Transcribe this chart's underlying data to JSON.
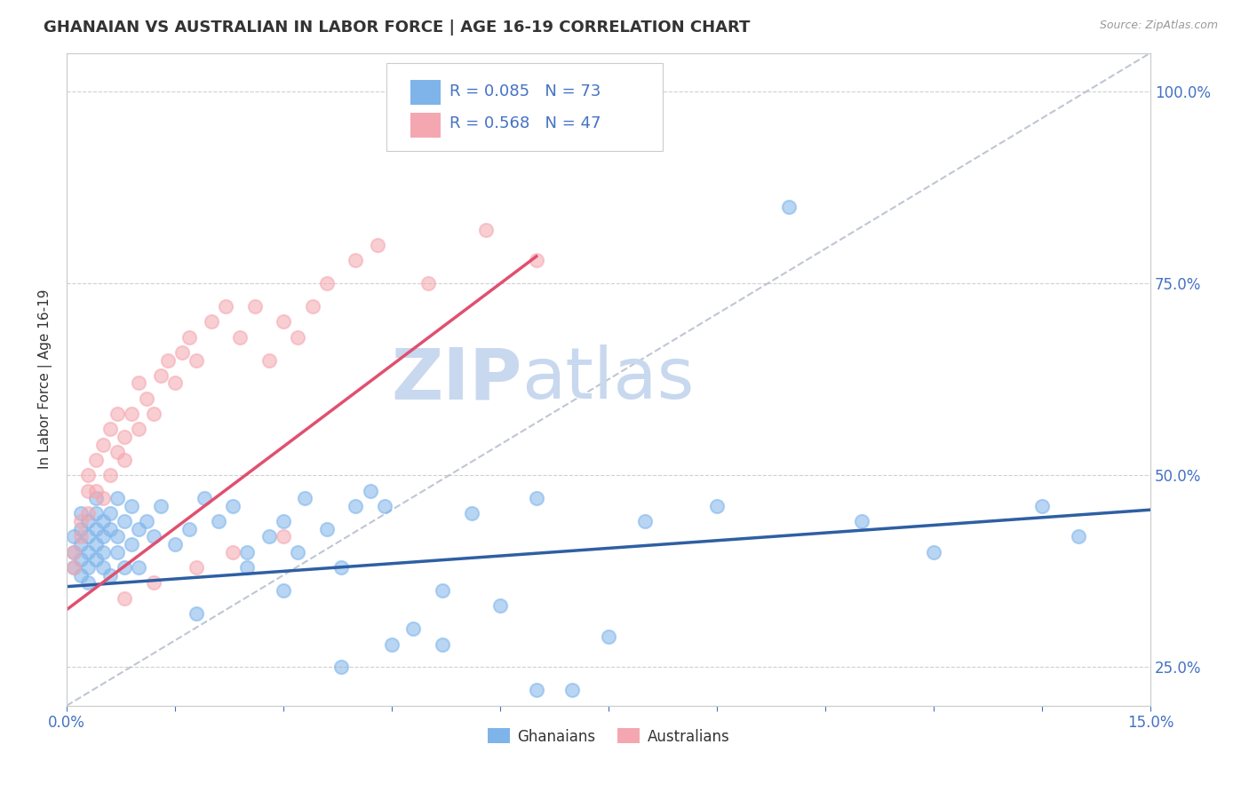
{
  "title": "GHANAIAN VS AUSTRALIAN IN LABOR FORCE | AGE 16-19 CORRELATION CHART",
  "source_text": "Source: ZipAtlas.com",
  "ylabel": "In Labor Force | Age 16-19",
  "xlim": [
    0.0,
    0.15
  ],
  "ylim": [
    0.2,
    1.05
  ],
  "yticks": [
    0.25,
    0.5,
    0.75,
    1.0
  ],
  "yticklabels_right": [
    "25.0%",
    "50.0%",
    "75.0%",
    "100.0%"
  ],
  "color_ghanaian": "#7eb4ea",
  "color_australian": "#f4a7b0",
  "color_line_ghanaian": "#2e5fa3",
  "color_line_australian": "#e05070",
  "color_ref_line": "#b0b8c8",
  "background_color": "#ffffff",
  "watermark_zip": "ZIP",
  "watermark_atlas": "atlas",
  "watermark_color": "#c8d8ee",
  "title_fontsize": 13,
  "axis_label_fontsize": 11,
  "tick_fontsize": 12,
  "tick_color": "#4472c4",
  "gh_x": [
    0.001,
    0.001,
    0.001,
    0.002,
    0.002,
    0.002,
    0.002,
    0.002,
    0.003,
    0.003,
    0.003,
    0.003,
    0.003,
    0.004,
    0.004,
    0.004,
    0.004,
    0.004,
    0.005,
    0.005,
    0.005,
    0.005,
    0.006,
    0.006,
    0.006,
    0.007,
    0.007,
    0.007,
    0.008,
    0.008,
    0.009,
    0.009,
    0.01,
    0.01,
    0.011,
    0.012,
    0.013,
    0.015,
    0.017,
    0.019,
    0.021,
    0.023,
    0.025,
    0.028,
    0.03,
    0.033,
    0.036,
    0.038,
    0.04,
    0.042,
    0.045,
    0.048,
    0.052,
    0.056,
    0.06,
    0.065,
    0.07,
    0.075,
    0.08,
    0.09,
    0.1,
    0.11,
    0.12,
    0.135,
    0.14,
    0.038,
    0.052,
    0.065,
    0.03,
    0.025,
    0.018,
    0.044,
    0.032
  ],
  "gh_y": [
    0.4,
    0.38,
    0.42,
    0.41,
    0.37,
    0.43,
    0.39,
    0.45,
    0.4,
    0.38,
    0.42,
    0.44,
    0.36,
    0.41,
    0.43,
    0.39,
    0.45,
    0.47,
    0.4,
    0.38,
    0.42,
    0.44,
    0.43,
    0.37,
    0.45,
    0.4,
    0.42,
    0.47,
    0.38,
    0.44,
    0.41,
    0.46,
    0.43,
    0.38,
    0.44,
    0.42,
    0.46,
    0.41,
    0.43,
    0.47,
    0.44,
    0.46,
    0.4,
    0.42,
    0.44,
    0.47,
    0.43,
    0.38,
    0.46,
    0.48,
    0.28,
    0.3,
    0.35,
    0.45,
    0.33,
    0.47,
    0.22,
    0.29,
    0.44,
    0.46,
    0.85,
    0.44,
    0.4,
    0.46,
    0.42,
    0.25,
    0.28,
    0.22,
    0.35,
    0.38,
    0.32,
    0.46,
    0.4
  ],
  "au_x": [
    0.001,
    0.001,
    0.002,
    0.002,
    0.003,
    0.003,
    0.003,
    0.004,
    0.004,
    0.005,
    0.005,
    0.006,
    0.006,
    0.007,
    0.007,
    0.008,
    0.008,
    0.009,
    0.01,
    0.01,
    0.011,
    0.012,
    0.013,
    0.014,
    0.015,
    0.016,
    0.017,
    0.018,
    0.02,
    0.022,
    0.024,
    0.026,
    0.028,
    0.03,
    0.032,
    0.034,
    0.036,
    0.04,
    0.043,
    0.05,
    0.058,
    0.065,
    0.008,
    0.012,
    0.018,
    0.023,
    0.03
  ],
  "au_y": [
    0.38,
    0.4,
    0.42,
    0.44,
    0.45,
    0.48,
    0.5,
    0.48,
    0.52,
    0.47,
    0.54,
    0.5,
    0.56,
    0.53,
    0.58,
    0.52,
    0.55,
    0.58,
    0.56,
    0.62,
    0.6,
    0.58,
    0.63,
    0.65,
    0.62,
    0.66,
    0.68,
    0.65,
    0.7,
    0.72,
    0.68,
    0.72,
    0.65,
    0.7,
    0.68,
    0.72,
    0.75,
    0.78,
    0.8,
    0.75,
    0.82,
    0.78,
    0.34,
    0.36,
    0.38,
    0.4,
    0.42
  ],
  "gh_line_x0": 0.0,
  "gh_line_x1": 0.15,
  "gh_line_y0": 0.355,
  "gh_line_y1": 0.455,
  "au_line_x0": 0.0,
  "au_line_x1": 0.065,
  "au_line_y0": 0.325,
  "au_line_y1": 0.785
}
